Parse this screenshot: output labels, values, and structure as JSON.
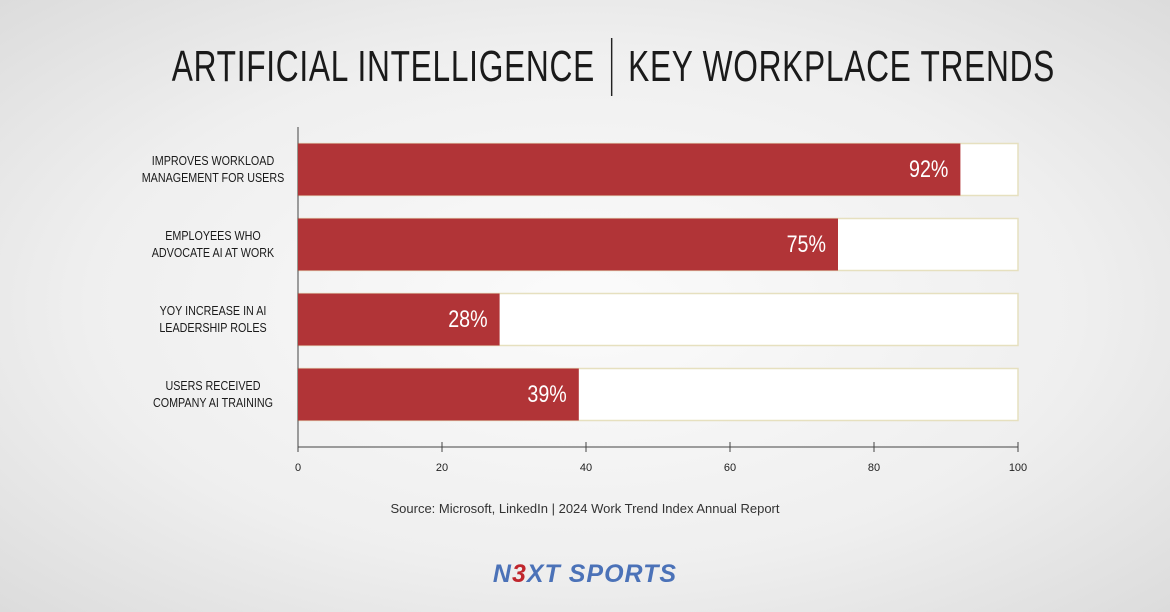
{
  "chart_data": {
    "type": "hbar",
    "title": [
      "ARTIFICIAL INTELLIGENCE",
      "KEY WORKPLACE TRENDS"
    ],
    "categories": [
      "IMPROVES WORKLOAD\nMANAGEMENT FOR USERS",
      "EMPLOYEES WHO\nADVOCATE AI AT WORK",
      "YOY INCREASE IN AI\nLEADERSHIP ROLES",
      "USERS RECEIVED\nCOMPANY AI TRAINING"
    ],
    "values": [
      92,
      75,
      28,
      39
    ],
    "value_labels": [
      "92%",
      "75%",
      "28%",
      "39%"
    ],
    "color": "#b13437",
    "xlim": [
      0,
      100
    ],
    "xticks": [
      0,
      20,
      40,
      60,
      80,
      100
    ],
    "source": "Source: Microsoft, LinkedIn | 2024 Work Trend Index Annual Report",
    "logo": [
      "N",
      "3",
      "XT SPORTS"
    ]
  }
}
